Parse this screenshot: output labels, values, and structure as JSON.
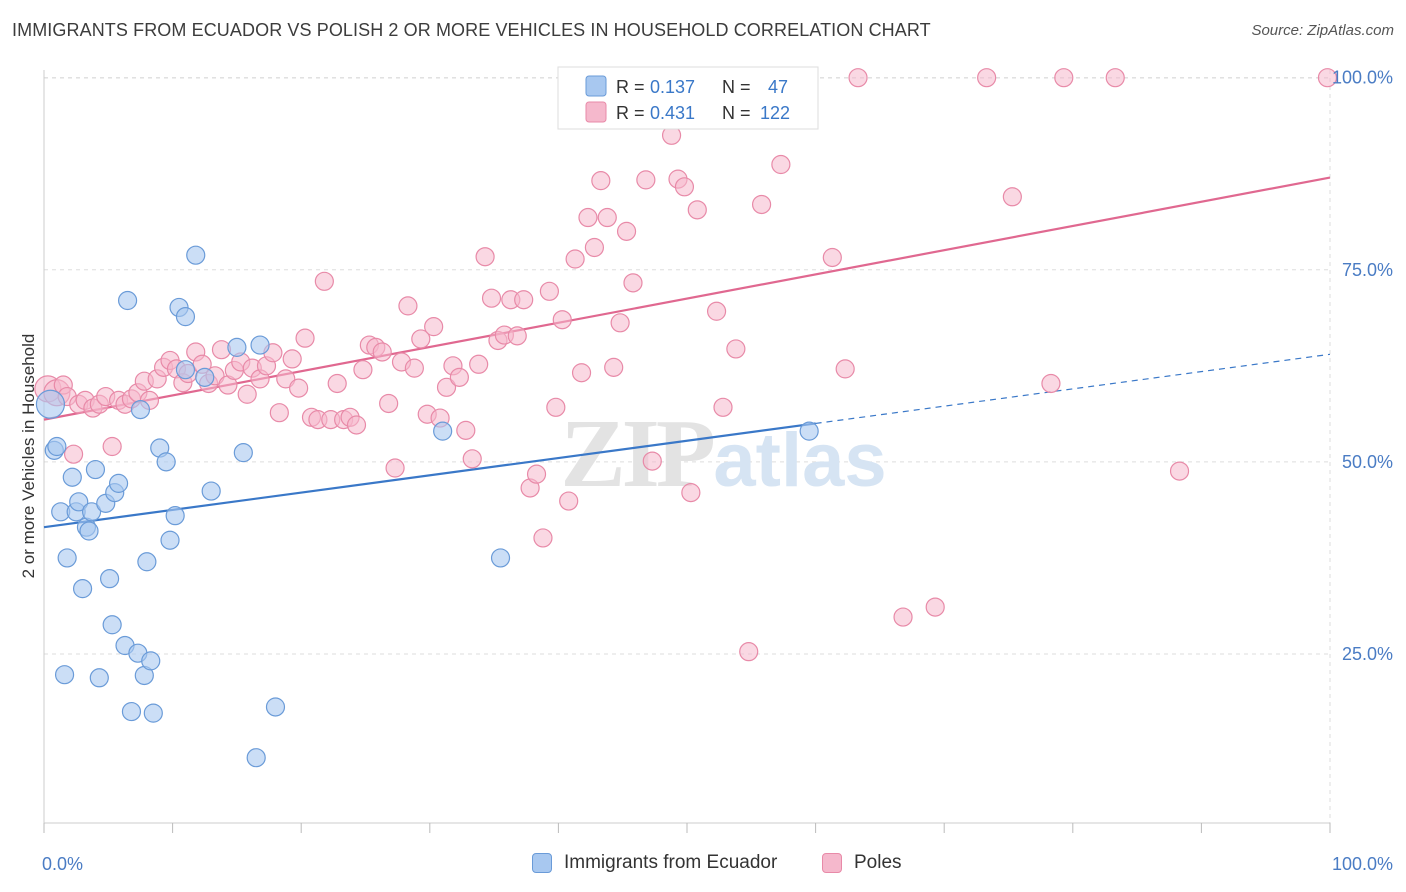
{
  "header": {
    "title": "IMMIGRANTS FROM ECUADOR VS POLISH 2 OR MORE VEHICLES IN HOUSEHOLD CORRELATION CHART",
    "source": "Source: ZipAtlas.com"
  },
  "watermark": {
    "zip": "ZIP",
    "atlas": "atlas"
  },
  "legend_top": [
    {
      "r_label": "R =",
      "r_value": "0.137",
      "n_label": "N =",
      "n_value": "47"
    },
    {
      "r_label": "R =",
      "r_value": "0.431",
      "n_label": "N =",
      "n_value": "122"
    }
  ],
  "legend_bottom": [
    {
      "label": "Immigrants from Ecuador"
    },
    {
      "label": "Poles"
    }
  ],
  "colors": {
    "blue_fill": "#a8c8f0",
    "blue_stroke": "#6a9bd8",
    "blue_line": "#3a78c8",
    "pink_fill": "#f5b8cc",
    "pink_stroke": "#e88aa8",
    "pink_line": "#e06890",
    "tick_label": "#4a7cc4",
    "grid": "#dddddd"
  },
  "chart_data": {
    "type": "scatter",
    "title": "IMMIGRANTS FROM ECUADOR VS POLISH 2 OR MORE VEHICLES IN HOUSEHOLD CORRELATION CHART",
    "xlabel": "",
    "ylabel": "2 or more Vehicles in Household",
    "xlim": [
      0,
      100
    ],
    "ylim": [
      3,
      101
    ],
    "x_tick_labels": [
      {
        "value": 0,
        "label": "0.0%"
      },
      {
        "value": 100,
        "label": "100.0%"
      }
    ],
    "y_tick_labels": [
      {
        "value": 25,
        "label": "25.0%"
      },
      {
        "value": 50,
        "label": "50.0%"
      },
      {
        "value": 75,
        "label": "75.0%"
      },
      {
        "value": 100,
        "label": "100.0%"
      }
    ],
    "grid": true,
    "legend_position": "top-center",
    "series": [
      {
        "name": "Immigrants from Ecuador",
        "R": 0.137,
        "N": 47,
        "trend": {
          "x0": 0,
          "y0": 41.5,
          "x1": 60,
          "y1": 55.0,
          "dashed_to_x": 100,
          "dashed_to_y": 64.0
        },
        "points": [
          [
            0.5,
            57.5
          ],
          [
            0.8,
            51.5
          ],
          [
            1.0,
            52
          ],
          [
            1.3,
            43.5
          ],
          [
            1.8,
            37.5
          ],
          [
            1.6,
            22.3
          ],
          [
            2.2,
            48
          ],
          [
            2.5,
            43.5
          ],
          [
            2.7,
            44.8
          ],
          [
            3.0,
            33.5
          ],
          [
            3.3,
            41.5
          ],
          [
            3.5,
            41
          ],
          [
            3.7,
            43.5
          ],
          [
            4.0,
            49
          ],
          [
            4.3,
            21.9
          ],
          [
            4.8,
            44.6
          ],
          [
            5.1,
            34.8
          ],
          [
            5.3,
            28.8
          ],
          [
            5.5,
            46
          ],
          [
            5.8,
            47.2
          ],
          [
            6.3,
            26.1
          ],
          [
            6.5,
            71
          ],
          [
            6.8,
            17.5
          ],
          [
            7.3,
            25.1
          ],
          [
            7.5,
            56.8
          ],
          [
            7.8,
            22.2
          ],
          [
            8.0,
            37
          ],
          [
            8.3,
            24.1
          ],
          [
            8.5,
            17.3
          ],
          [
            9.0,
            51.8
          ],
          [
            9.5,
            50
          ],
          [
            9.8,
            39.8
          ],
          [
            10.2,
            43
          ],
          [
            10.5,
            70.1
          ],
          [
            11.0,
            68.9
          ],
          [
            11.0,
            62
          ],
          [
            11.8,
            76.9
          ],
          [
            12.5,
            61
          ],
          [
            13.0,
            46.2
          ],
          [
            15.0,
            64.9
          ],
          [
            15.5,
            51.2
          ],
          [
            16.5,
            11.5
          ],
          [
            16.8,
            65.2
          ],
          [
            18.0,
            18.1
          ],
          [
            31.0,
            54
          ],
          [
            35.5,
            37.5
          ],
          [
            59.5,
            54
          ]
        ]
      },
      {
        "name": "Poles",
        "R": 0.431,
        "N": 122,
        "trend": {
          "x0": 0,
          "y0": 55.5,
          "x1": 100,
          "y1": 87.0
        },
        "points": [
          [
            0.3,
            59.5
          ],
          [
            1.0,
            59
          ],
          [
            1.5,
            60
          ],
          [
            1.8,
            58.5
          ],
          [
            2.3,
            51
          ],
          [
            2.7,
            57.5
          ],
          [
            3.2,
            58
          ],
          [
            3.8,
            57
          ],
          [
            4.3,
            57.5
          ],
          [
            4.8,
            58.5
          ],
          [
            5.3,
            52
          ],
          [
            5.8,
            58
          ],
          [
            6.3,
            57.5
          ],
          [
            6.8,
            58.2
          ],
          [
            7.3,
            59
          ],
          [
            7.8,
            60.5
          ],
          [
            8.2,
            58
          ],
          [
            8.8,
            60.8
          ],
          [
            9.3,
            62.3
          ],
          [
            9.8,
            63.2
          ],
          [
            10.3,
            62.1
          ],
          [
            10.8,
            60.3
          ],
          [
            11.2,
            61.5
          ],
          [
            11.8,
            64.3
          ],
          [
            12.3,
            62.7
          ],
          [
            12.8,
            60.2
          ],
          [
            13.3,
            61.2
          ],
          [
            13.8,
            64.6
          ],
          [
            14.3,
            60
          ],
          [
            14.8,
            61.9
          ],
          [
            15.3,
            63
          ],
          [
            15.8,
            58.8
          ],
          [
            16.2,
            62.2
          ],
          [
            16.8,
            60.8
          ],
          [
            17.3,
            62.5
          ],
          [
            17.8,
            64.2
          ],
          [
            18.3,
            56.4
          ],
          [
            18.8,
            60.8
          ],
          [
            19.3,
            63.4
          ],
          [
            19.8,
            59.6
          ],
          [
            20.3,
            66.1
          ],
          [
            20.8,
            55.8
          ],
          [
            21.3,
            55.5
          ],
          [
            21.8,
            73.5
          ],
          [
            22.3,
            55.5
          ],
          [
            22.8,
            60.2
          ],
          [
            23.3,
            55.5
          ],
          [
            23.8,
            55.8
          ],
          [
            24.3,
            54.8
          ],
          [
            24.8,
            62
          ],
          [
            25.3,
            65.2
          ],
          [
            25.8,
            64.9
          ],
          [
            26.3,
            64.3
          ],
          [
            26.8,
            57.6
          ],
          [
            27.3,
            49.2
          ],
          [
            27.8,
            63
          ],
          [
            28.3,
            70.3
          ],
          [
            28.8,
            62.2
          ],
          [
            29.3,
            66
          ],
          [
            29.8,
            56.2
          ],
          [
            30.3,
            67.6
          ],
          [
            30.8,
            55.7
          ],
          [
            31.3,
            59.7
          ],
          [
            31.8,
            62.5
          ],
          [
            32.3,
            61
          ],
          [
            32.8,
            54.1
          ],
          [
            33.3,
            50.4
          ],
          [
            33.8,
            62.7
          ],
          [
            34.3,
            76.7
          ],
          [
            34.8,
            71.3
          ],
          [
            35.3,
            65.8
          ],
          [
            35.8,
            66.5
          ],
          [
            36.3,
            71.1
          ],
          [
            36.8,
            66.4
          ],
          [
            37.3,
            71.1
          ],
          [
            37.8,
            46.6
          ],
          [
            38.3,
            48.4
          ],
          [
            38.8,
            40.1
          ],
          [
            39.3,
            72.2
          ],
          [
            39.8,
            57.1
          ],
          [
            40.3,
            68.5
          ],
          [
            40.8,
            44.9
          ],
          [
            41.3,
            76.4
          ],
          [
            41.8,
            61.6
          ],
          [
            42.3,
            81.8
          ],
          [
            42.8,
            77.9
          ],
          [
            43.3,
            86.6
          ],
          [
            43.8,
            81.8
          ],
          [
            44.3,
            62.3
          ],
          [
            44.8,
            68.1
          ],
          [
            45.3,
            80
          ],
          [
            45.8,
            73.3
          ],
          [
            46.3,
            95.3
          ],
          [
            46.8,
            86.7
          ],
          [
            47.3,
            50.1
          ],
          [
            47.8,
            100
          ],
          [
            48.3,
            100
          ],
          [
            48.8,
            92.5
          ],
          [
            49.3,
            86.8
          ],
          [
            49.8,
            85.8
          ],
          [
            50.3,
            46
          ],
          [
            50.8,
            82.8
          ],
          [
            51.3,
            100
          ],
          [
            52.3,
            69.6
          ],
          [
            52.8,
            57.1
          ],
          [
            53.8,
            64.7
          ],
          [
            54.8,
            25.3
          ],
          [
            55.8,
            83.5
          ],
          [
            57.3,
            88.7
          ],
          [
            61.3,
            76.6
          ],
          [
            62.3,
            62.1
          ],
          [
            63.3,
            100
          ],
          [
            66.8,
            29.8
          ],
          [
            69.3,
            31.1
          ],
          [
            73.3,
            100
          ],
          [
            75.3,
            84.5
          ],
          [
            78.3,
            60.2
          ],
          [
            79.3,
            100
          ],
          [
            83.3,
            100
          ],
          [
            88.3,
            48.8
          ],
          [
            99.8,
            100
          ]
        ]
      }
    ]
  }
}
